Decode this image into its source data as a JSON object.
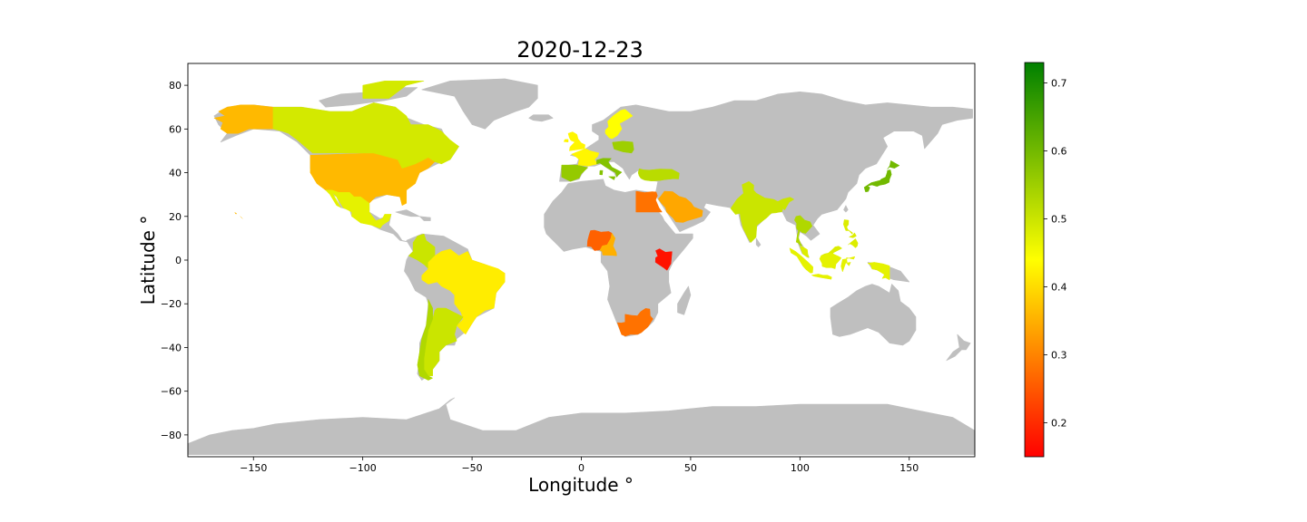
{
  "title": "2020-12-23",
  "xlabel": "Longitude  °",
  "ylabel": "Latitude  °",
  "colors": {
    "no_data": "#bfbfbf",
    "cmap_low": "#ff0000",
    "cmap_mid": "#ffff00",
    "cmap_high": "#008000"
  },
  "chart_data": {
    "type": "choropleth",
    "xlim": [
      -180,
      180
    ],
    "ylim": [
      -90,
      90
    ],
    "xticks": [
      -150,
      -100,
      -50,
      0,
      50,
      100,
      150
    ],
    "yticks": [
      -80,
      -60,
      -40,
      -20,
      0,
      20,
      40,
      60,
      80
    ],
    "xtick_labels": [
      "−150",
      "−100",
      "−50",
      "0",
      "50",
      "100",
      "150"
    ],
    "ytick_labels": [
      "−80",
      "−60",
      "−40",
      "−20",
      "0",
      "20",
      "40",
      "60",
      "80"
    ],
    "colorbar": {
      "vmin": 0.15,
      "vmax": 0.73,
      "ticks": [
        0.2,
        0.3,
        0.4,
        0.5,
        0.6,
        0.7
      ],
      "tick_labels": [
        "0.2",
        "0.3",
        "0.4",
        "0.5",
        "0.6",
        "0.7"
      ]
    },
    "grid": false,
    "regions": [
      {
        "name": "United States",
        "value": 0.36
      },
      {
        "name": "Alaska",
        "value": 0.36
      },
      {
        "name": "Canada",
        "value": 0.49
      },
      {
        "name": "Mexico",
        "value": 0.47
      },
      {
        "name": "Colombia",
        "value": 0.5
      },
      {
        "name": "Brazil",
        "value": 0.42
      },
      {
        "name": "Argentina",
        "value": 0.5
      },
      {
        "name": "Chile",
        "value": 0.53
      },
      {
        "name": "Spain",
        "value": 0.56
      },
      {
        "name": "France",
        "value": 0.43
      },
      {
        "name": "United Kingdom",
        "value": 0.43
      },
      {
        "name": "Sweden",
        "value": 0.44
      },
      {
        "name": "Poland",
        "value": 0.55
      },
      {
        "name": "Italy",
        "value": 0.58
      },
      {
        "name": "Turkey",
        "value": 0.52
      },
      {
        "name": "Saudi Arabia",
        "value": 0.34
      },
      {
        "name": "Egypt",
        "value": 0.28
      },
      {
        "name": "Nigeria",
        "value": 0.26
      },
      {
        "name": "Cameroon",
        "value": 0.35
      },
      {
        "name": "Kenya",
        "value": 0.17
      },
      {
        "name": "South Africa",
        "value": 0.28
      },
      {
        "name": "India",
        "value": 0.5
      },
      {
        "name": "Thailand",
        "value": 0.53
      },
      {
        "name": "Malaysia",
        "value": 0.48
      },
      {
        "name": "Indonesia",
        "value": 0.47
      },
      {
        "name": "Philippines",
        "value": 0.48
      },
      {
        "name": "Japan",
        "value": 0.6
      },
      {
        "name": "Hawaii",
        "value": 0.36
      }
    ]
  }
}
